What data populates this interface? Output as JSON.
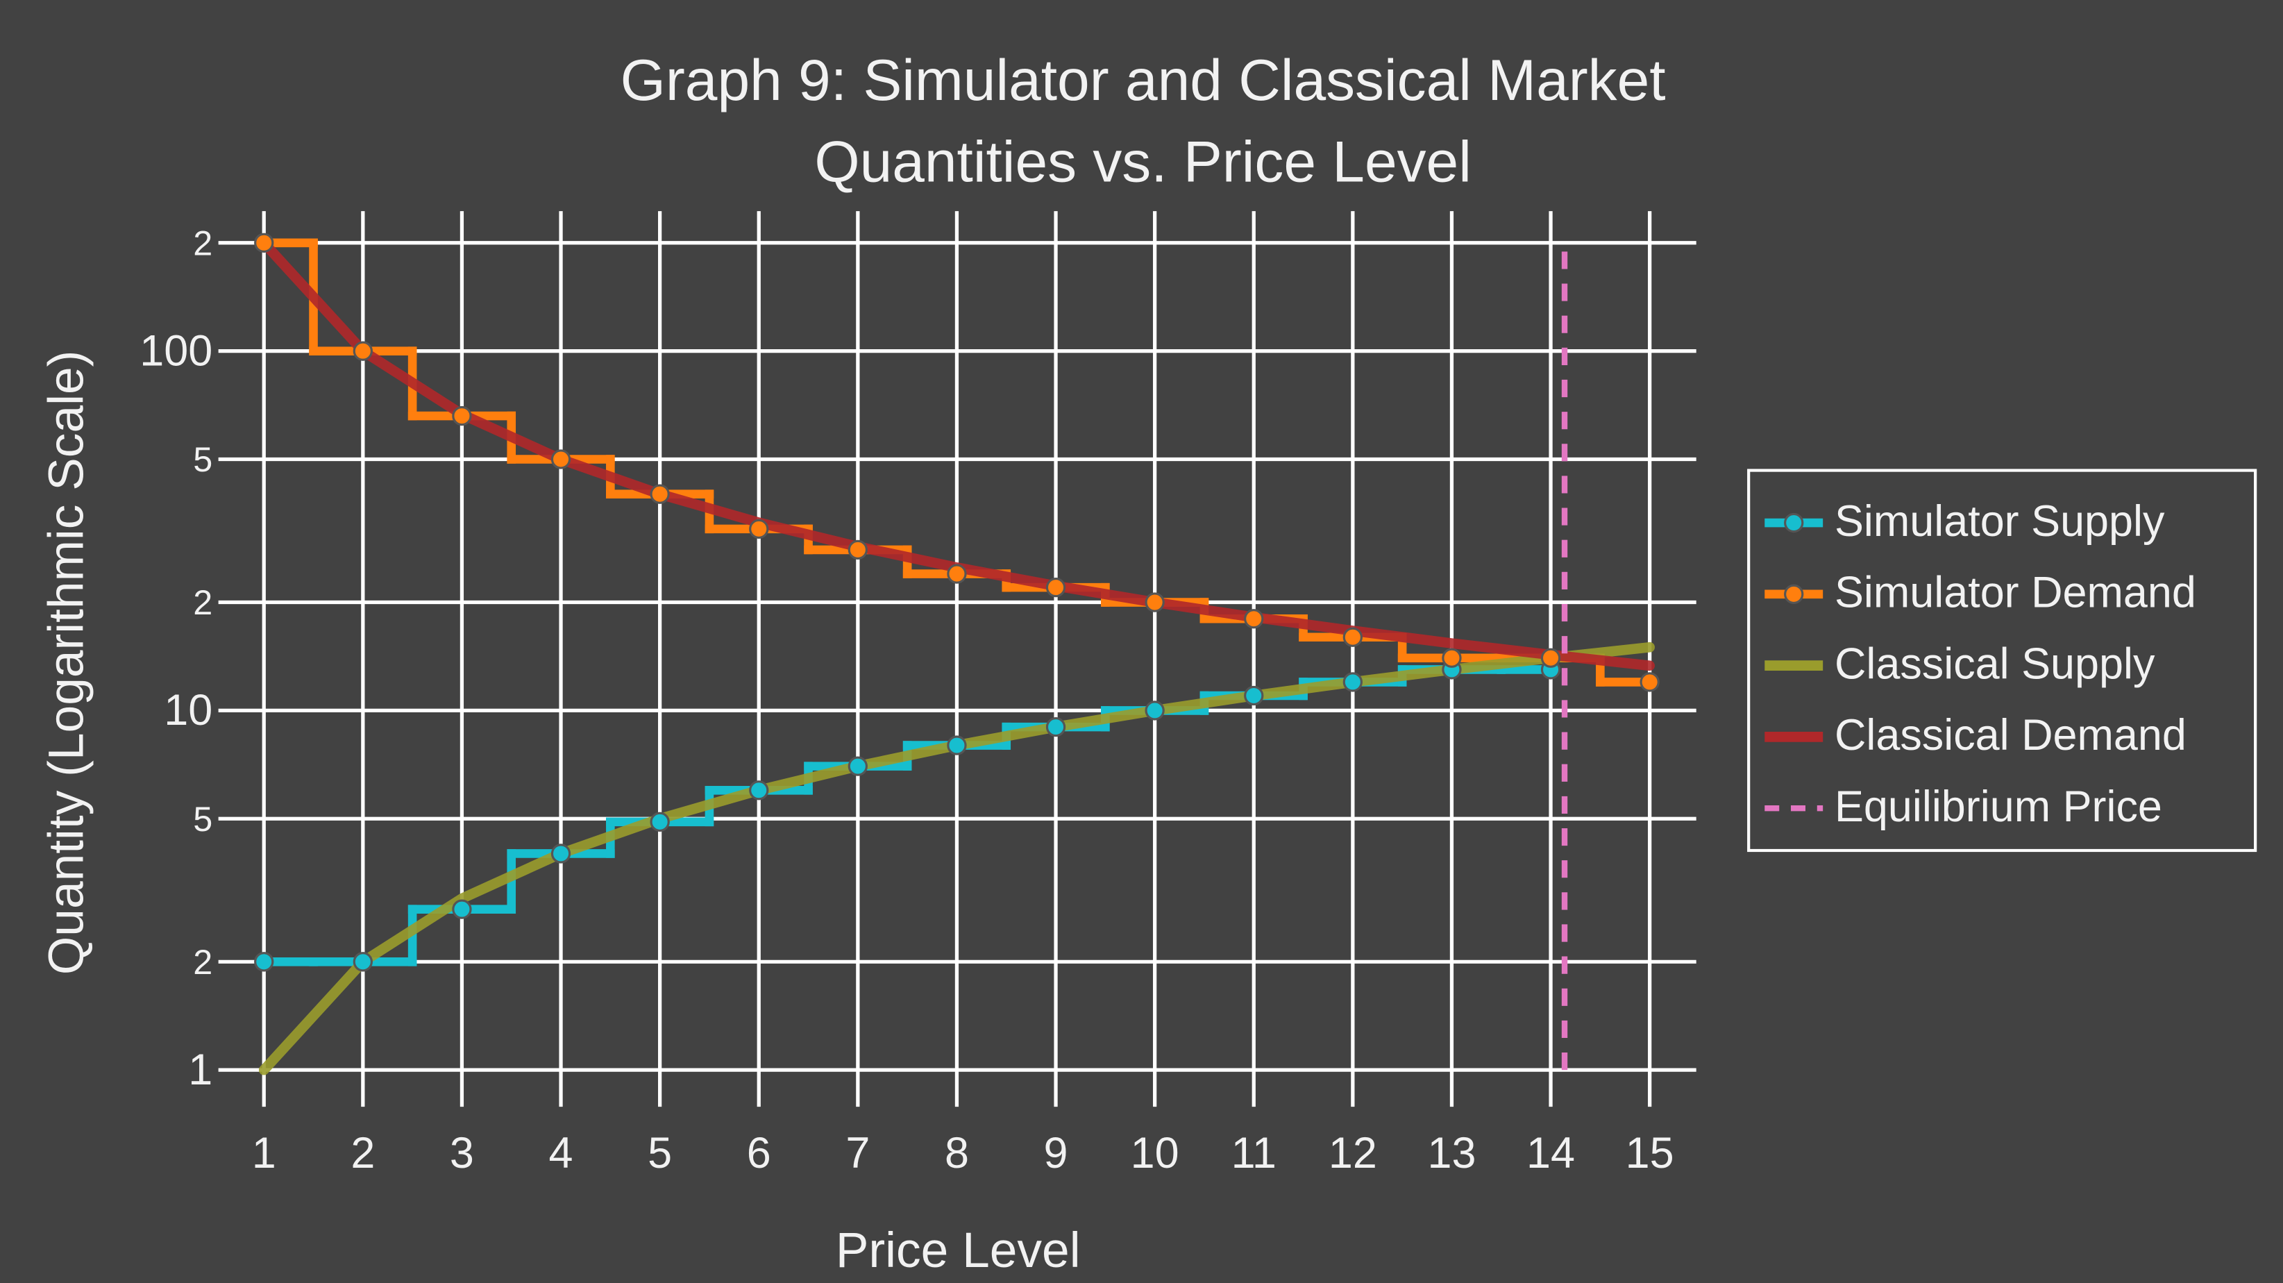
{
  "chart_data": {
    "type": "line",
    "title": [
      "Graph 9: Simulator and Classical Market",
      "Quantities vs. Price Level"
    ],
    "x_label": "Price Level",
    "y_label": "Quantity (Logarithmic Scale)",
    "log_y": true,
    "grid": true,
    "legend": "right",
    "xlim": [
      0.54,
      15.47
    ],
    "ylim": [
      0.79,
      245
    ],
    "xticks": [
      1,
      2,
      3,
      4,
      5,
      6,
      7,
      8,
      9,
      10,
      11,
      12,
      13,
      14,
      15
    ],
    "yticks": [
      1,
      2,
      5,
      10,
      {
        "value": 20,
        "label": "2"
      },
      {
        "value": 50,
        "label": "5"
      },
      100,
      {
        "value": 200,
        "label": "2"
      }
    ],
    "series": [
      {
        "name": "Simulator Supply",
        "color": "#17becf",
        "mode": "steps+markers",
        "x": [
          1,
          2,
          3,
          4,
          5,
          6,
          7,
          8,
          9,
          10,
          11,
          12,
          13,
          14
        ],
        "values": [
          2,
          2,
          2.8,
          4,
          4.9,
          6,
          7,
          8,
          9,
          10,
          11,
          12,
          13,
          13
        ]
      },
      {
        "name": "Simulator Demand",
        "color": "#ff7f0e",
        "mode": "steps+markers",
        "x": [
          1,
          2,
          3,
          4,
          5,
          6,
          7,
          8,
          9,
          10,
          11,
          12,
          13,
          14,
          15
        ],
        "values": [
          200,
          100,
          66,
          50,
          40,
          32,
          28,
          24,
          22,
          20,
          18,
          16,
          14,
          14,
          12
        ]
      },
      {
        "name": "Classical Supply",
        "color": "#9a9c2c",
        "mode": "lines",
        "x": [
          1,
          2,
          3,
          4,
          5,
          6,
          7,
          8,
          9,
          10,
          11,
          12,
          13,
          14,
          15
        ],
        "values": [
          1,
          2,
          3,
          4,
          5,
          6,
          7,
          8,
          9,
          10,
          11,
          12,
          13,
          14,
          15
        ]
      },
      {
        "name": "Classical Demand",
        "color": "#b0282a",
        "mode": "lines",
        "x": [
          1,
          2,
          3,
          4,
          5,
          6,
          7,
          8,
          9,
          10,
          11,
          12,
          13,
          14,
          15
        ],
        "values": [
          200,
          100,
          66.67,
          50,
          40,
          33.33,
          28.57,
          25,
          22.22,
          20,
          18.18,
          16.67,
          15.38,
          14.29,
          13.33
        ]
      },
      {
        "name": "Equilibrium Price",
        "color": "#e377c2",
        "mode": "dash",
        "x": [
          14.14,
          14.14
        ],
        "values": [
          1,
          200
        ]
      }
    ]
  }
}
